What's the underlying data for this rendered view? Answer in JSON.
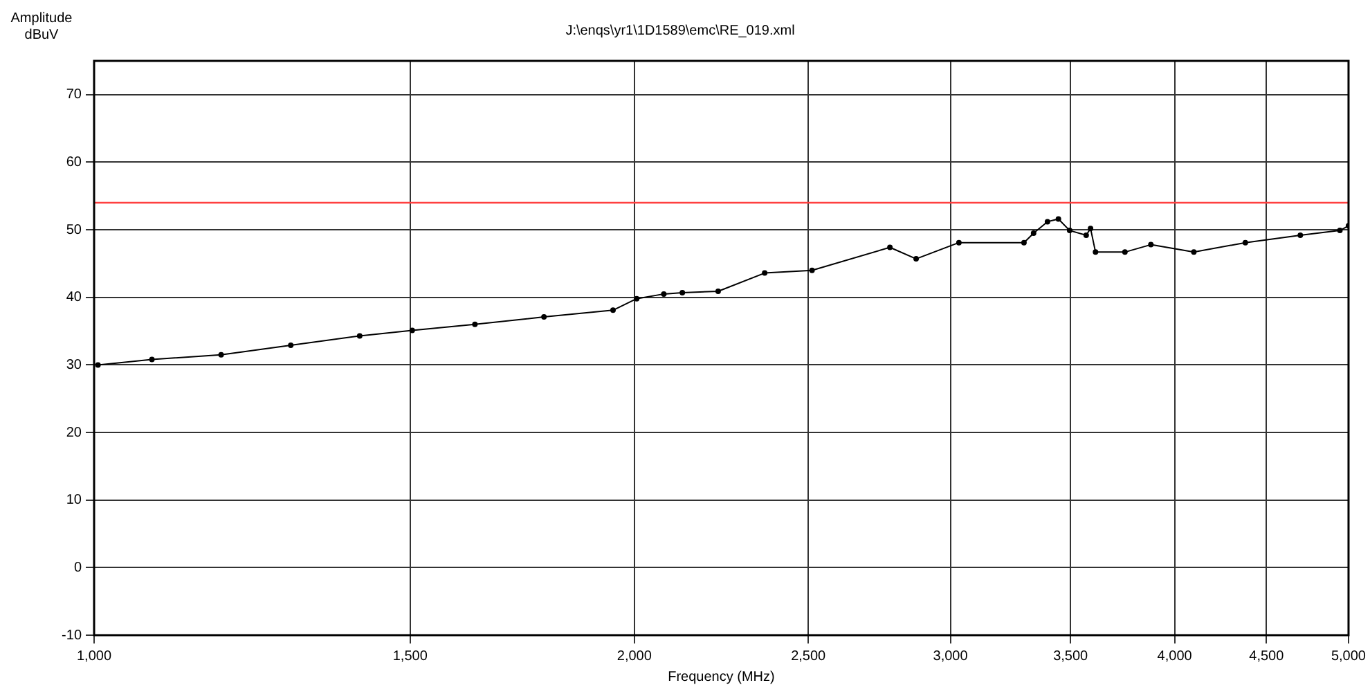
{
  "chart_data": {
    "type": "line",
    "title": "J:\\enqs\\yr1\\1D1589\\emc\\RE_019.xml",
    "xlabel": "Frequency (MHz)",
    "ylabel": "Amplitude\ndBuV",
    "x": [
      1005,
      1077,
      1177,
      1287,
      1406,
      1504,
      1630,
      1781,
      1946,
      2006,
      2077,
      2127,
      2227,
      2364,
      2512,
      2776,
      2871,
      3033,
      3297,
      3338,
      3398,
      3446,
      3496,
      3571,
      3591,
      3614,
      3753,
      3880,
      4100,
      4380,
      4700,
      4945,
      5000
    ],
    "series": [
      {
        "color": "#000000",
        "values": [
          30,
          30.8,
          31.5,
          32.9,
          34.3,
          35.1,
          36,
          37.1,
          38.1,
          39.8,
          40.5,
          40.7,
          40.9,
          43.6,
          44,
          47.4,
          45.7,
          48.1,
          48.1,
          49.5,
          51.2,
          51.6,
          49.9,
          49.2,
          50.2,
          46.7,
          46.7,
          47.8,
          46.7,
          48.1,
          49.2,
          49.9,
          50.6
        ]
      }
    ],
    "log": "x",
    "xlim": [
      1000,
      5000
    ],
    "xticks": [
      {
        "value": 1000,
        "label": "1,000"
      },
      {
        "value": 1500,
        "label": "1,500"
      },
      {
        "value": 2000,
        "label": "2,000"
      },
      {
        "value": 2500,
        "label": "2,500"
      },
      {
        "value": 3000,
        "label": "3,000"
      },
      {
        "value": 3500,
        "label": "3,500"
      },
      {
        "value": 4000,
        "label": "4,000"
      },
      {
        "value": 4500,
        "label": "4,500"
      },
      {
        "value": 5000,
        "label": "5,000"
      }
    ],
    "ylim": [
      -10,
      75
    ],
    "yticks": [
      -10,
      0,
      10,
      20,
      30,
      40,
      50,
      60,
      70
    ],
    "ref_lines": [
      {
        "axis": "y",
        "value": 54,
        "color": "#ff4040"
      }
    ],
    "grid": true,
    "legend": false,
    "marker": "circle",
    "line_style": "solid"
  }
}
